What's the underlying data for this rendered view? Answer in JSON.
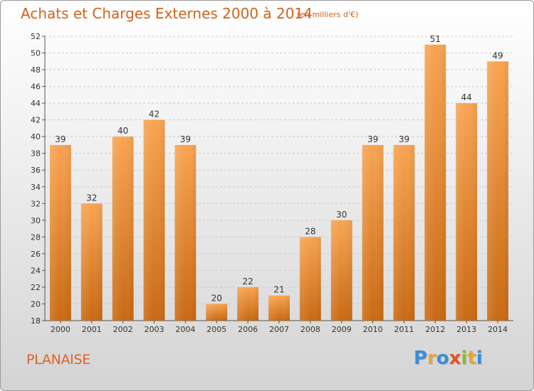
{
  "header": {
    "title": "Achats et Charges Externes 2000 à 2014",
    "subtitle": "(en milliers d'€)"
  },
  "footer": {
    "commune": "PLANAISE",
    "logo_letters": [
      "P",
      "r",
      "o",
      "x",
      "i",
      "t",
      "i"
    ],
    "logo_colors": [
      "#3a8fd6",
      "#e8a33a",
      "#3a8fd6",
      "#e8521a",
      "#8bbd2e",
      "#e8a33a",
      "#3a8fd6"
    ]
  },
  "chart_data": {
    "type": "bar",
    "title": "Achats et Charges Externes 2000 à 2014",
    "subtitle": "(en milliers d'€)",
    "categories": [
      "2000",
      "2001",
      "2002",
      "2003",
      "2004",
      "2005",
      "2006",
      "2007",
      "2008",
      "2009",
      "2010",
      "2011",
      "2012",
      "2013",
      "2014"
    ],
    "values": [
      39,
      32,
      40,
      42,
      39,
      20,
      22,
      21,
      28,
      30,
      39,
      39,
      51,
      44,
      49
    ],
    "ylim": [
      18,
      52
    ],
    "yticks": [
      18,
      20,
      22,
      24,
      26,
      28,
      30,
      32,
      34,
      36,
      38,
      40,
      42,
      44,
      46,
      48,
      50,
      52
    ],
    "grid": true,
    "bar_color_top": "#f8a452",
    "bar_color_bottom": "#c96a14"
  }
}
